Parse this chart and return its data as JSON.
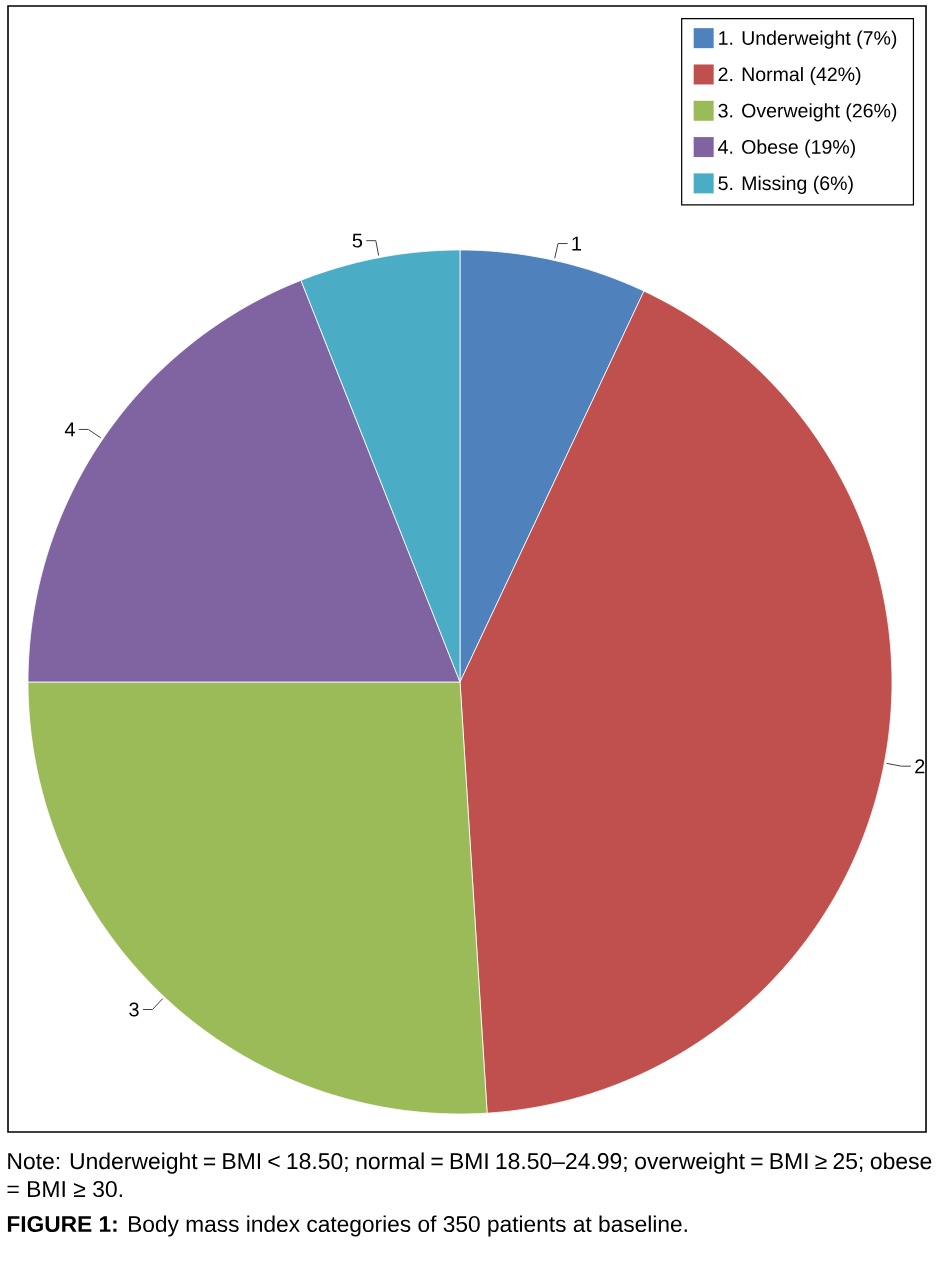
{
  "chart_data": {
    "type": "pie",
    "title": "**FIGURE 1:** Body mass index categories of 350 patients at baseline.",
    "categories": [
      "1. Underweight (7%)",
      "2. Normal (42%)",
      "3. Overweight (26%)",
      "4. Obese (19%)",
      "5. Missing (6%)"
    ],
    "values": [
      7,
      42,
      26,
      19,
      6
    ],
    "colors": [
      "#4f81bd",
      "#c0504d",
      "#9bbb59",
      "#8064a2",
      "#4bacc6"
    ],
    "legend": "top right",
    "annotations": [
      {
        "text": "1",
        "x": "1. Underweight (7%)"
      },
      {
        "text": "2",
        "x": "2. Normal (42%)"
      },
      {
        "text": "3",
        "x": "3. Overweight (26%)"
      },
      {
        "text": "4",
        "x": "4. Obese (19%)"
      },
      {
        "text": "5",
        "x": "5. Missing (6%)"
      },
      "Note: Underweight = BMI < 18.50; normal = BMI 18.50–24.99; overweight = BMI ≥ 25; obese = BMI ≥ 30."
    ]
  }
}
